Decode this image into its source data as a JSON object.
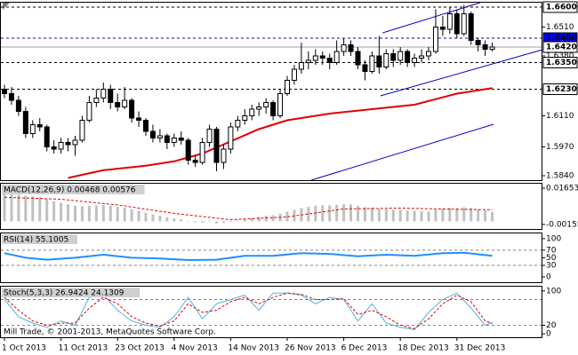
{
  "footer": "Mill Trade, © 2001-2013, MetaQuotes Software Corp.",
  "chart_data": [
    {
      "type": "candlestick",
      "categories": [
        "1 Oct 2013",
        null,
        null,
        null,
        null,
        null,
        null,
        null,
        "11 Oct 2013",
        null,
        null,
        null,
        null,
        null,
        null,
        null,
        "23 Oct 2013",
        null,
        null,
        null,
        null,
        null,
        null,
        null,
        "4 Nov 2013",
        null,
        null,
        null,
        null,
        null,
        null,
        null,
        "14 Nov 2013",
        null,
        null,
        null,
        null,
        null,
        null,
        null,
        "26 Nov 2013",
        null,
        null,
        null,
        null,
        null,
        null,
        null,
        "6 Dec 2013",
        null,
        null,
        null,
        null,
        null,
        null,
        null,
        "18 Dec 2013",
        null,
        null,
        null,
        null,
        null,
        null,
        null,
        "31 Dec 2013",
        null,
        null,
        null,
        null,
        null
      ],
      "ohlc": [
        [
          1.623,
          1.625,
          1.619,
          1.621
        ],
        [
          1.621,
          1.624,
          1.616,
          1.618
        ],
        [
          1.618,
          1.62,
          1.611,
          1.613
        ],
        [
          1.613,
          1.615,
          1.601,
          1.603
        ],
        [
          1.603,
          1.609,
          1.601,
          1.607
        ],
        [
          1.607,
          1.61,
          1.604,
          1.606
        ],
        [
          1.606,
          1.607,
          1.595,
          1.597
        ],
        [
          1.597,
          1.6,
          1.594,
          1.596
        ],
        [
          1.596,
          1.601,
          1.594,
          1.599
        ],
        [
          1.599,
          1.601,
          1.595,
          1.598
        ],
        [
          1.598,
          1.602,
          1.593,
          1.6
        ],
        [
          1.6,
          1.611,
          1.599,
          1.609
        ],
        [
          1.609,
          1.62,
          1.608,
          1.617
        ],
        [
          1.617,
          1.623,
          1.615,
          1.619
        ],
        [
          1.619,
          1.626,
          1.617,
          1.623
        ],
        [
          1.623,
          1.625,
          1.614,
          1.617
        ],
        [
          1.617,
          1.621,
          1.613,
          1.615
        ],
        [
          1.615,
          1.624,
          1.614,
          1.618
        ],
        [
          1.618,
          1.619,
          1.608,
          1.61
        ],
        [
          1.61,
          1.613,
          1.606,
          1.609
        ],
        [
          1.609,
          1.61,
          1.602,
          1.604
        ],
        [
          1.604,
          1.607,
          1.599,
          1.601
        ],
        [
          1.601,
          1.605,
          1.599,
          1.602
        ],
        [
          1.602,
          1.603,
          1.596,
          1.599
        ],
        [
          1.599,
          1.603,
          1.597,
          1.601
        ],
        [
          1.601,
          1.604,
          1.598,
          1.6
        ],
        [
          1.6,
          1.601,
          1.589,
          1.591
        ],
        [
          1.591,
          1.593,
          1.588,
          1.59
        ],
        [
          1.59,
          1.601,
          1.589,
          1.599
        ],
        [
          1.599,
          1.607,
          1.597,
          1.605
        ],
        [
          1.605,
          1.606,
          1.586,
          1.59
        ],
        [
          1.59,
          1.598,
          1.587,
          1.596
        ],
        [
          1.596,
          1.608,
          1.594,
          1.606
        ],
        [
          1.606,
          1.611,
          1.604,
          1.609
        ],
        [
          1.609,
          1.614,
          1.607,
          1.611
        ],
        [
          1.611,
          1.616,
          1.609,
          1.614
        ],
        [
          1.614,
          1.617,
          1.611,
          1.615
        ],
        [
          1.615,
          1.619,
          1.612,
          1.617
        ],
        [
          1.617,
          1.618,
          1.609,
          1.611
        ],
        [
          1.611,
          1.623,
          1.61,
          1.621
        ],
        [
          1.621,
          1.629,
          1.62,
          1.627
        ],
        [
          1.627,
          1.634,
          1.625,
          1.632
        ],
        [
          1.632,
          1.644,
          1.63,
          1.635
        ],
        [
          1.635,
          1.64,
          1.632,
          1.636
        ],
        [
          1.636,
          1.641,
          1.634,
          1.638
        ],
        [
          1.638,
          1.64,
          1.634,
          1.637
        ],
        [
          1.637,
          1.639,
          1.632,
          1.635
        ],
        [
          1.635,
          1.645,
          1.634,
          1.64
        ],
        [
          1.64,
          1.646,
          1.638,
          1.643
        ],
        [
          1.643,
          1.645,
          1.638,
          1.64
        ],
        [
          1.64,
          1.642,
          1.632,
          1.634
        ],
        [
          1.634,
          1.636,
          1.627,
          1.631
        ],
        [
          1.631,
          1.64,
          1.63,
          1.638
        ],
        [
          1.638,
          1.647,
          1.63,
          1.633
        ],
        [
          1.633,
          1.641,
          1.632,
          1.639
        ],
        [
          1.639,
          1.641,
          1.633,
          1.636
        ],
        [
          1.636,
          1.642,
          1.634,
          1.64
        ],
        [
          1.64,
          1.641,
          1.633,
          1.635
        ],
        [
          1.635,
          1.639,
          1.633,
          1.637
        ],
        [
          1.637,
          1.641,
          1.635,
          1.638
        ],
        [
          1.638,
          1.642,
          1.636,
          1.64
        ],
        [
          1.64,
          1.659,
          1.639,
          1.651
        ],
        [
          1.651,
          1.656,
          1.647,
          1.65
        ],
        [
          1.65,
          1.66,
          1.648,
          1.657
        ],
        [
          1.657,
          1.659,
          1.646,
          1.648
        ],
        [
          1.648,
          1.661,
          1.647,
          1.657
        ],
        [
          1.657,
          1.658,
          1.643,
          1.645
        ],
        [
          1.645,
          1.646,
          1.64,
          1.643
        ],
        [
          1.643,
          1.645,
          1.638,
          1.641
        ],
        [
          1.641,
          1.644,
          1.64,
          1.642
        ]
      ],
      "ylim": [
        1.582,
        1.6624
      ],
      "yticks": [
        {
          "value": 1.651,
          "label": "1.6510"
        },
        {
          "value": 1.638,
          "label": "1.6380"
        },
        {
          "value": 1.611,
          "label": "1.6110"
        },
        {
          "value": 1.597,
          "label": "1.5970"
        },
        {
          "value": 1.584,
          "label": "1.5840"
        }
      ],
      "levels": [
        {
          "value": 1.66,
          "label": "1.6600",
          "color": "#000000",
          "dash": true,
          "label_fill": "#ffffff",
          "label_color": "#000000"
        },
        {
          "value": 1.646,
          "label": "1.6460",
          "color": "#0000cc",
          "dash": true,
          "label_fill": "#0000ff",
          "label_color": "#ffffff"
        },
        {
          "value": 1.642,
          "label": "1.6420",
          "color": "#a0a0a0",
          "dash": false,
          "label_fill": "#ffffff",
          "label_color": "#000000"
        },
        {
          "value": 1.635,
          "label": "1.6350",
          "color": "#000000",
          "dash": true,
          "label_fill": "#ffffff",
          "label_color": "#000000"
        },
        {
          "value": 1.623,
          "label": "1.6230",
          "color": "#000000",
          "dash": true,
          "label_fill": "#ffffff",
          "label_color": "#000000"
        }
      ],
      "lines": [
        {
          "color": "#e00000",
          "width": 2,
          "x": [
            9,
            14,
            20,
            24,
            28,
            32,
            36,
            40,
            46,
            52,
            58,
            64,
            69
          ],
          "values": [
            1.583,
            1.5865,
            1.5885,
            1.5905,
            1.594,
            1.5995,
            1.605,
            1.609,
            1.612,
            1.614,
            1.616,
            1.621,
            1.6235
          ]
        }
      ],
      "trendlines": [
        {
          "color": "#0000cc",
          "x": [
            53.5,
            67.3
          ],
          "values": [
            1.6484,
            1.662
          ]
        },
        {
          "color": "#0000cc",
          "x": [
            53.2,
            76.1
          ],
          "values": [
            1.62,
            1.6408
          ]
        },
        {
          "color": "#0000cc",
          "x": [
            43.4,
            69.2
          ],
          "values": [
            1.582,
            1.6072
          ]
        }
      ]
    },
    {
      "type": "macd",
      "label": "MACD(12,26,9) 0.00468 0.00576",
      "values": [
        0.0135,
        0.0136,
        0.0133,
        0.0128,
        0.0125,
        0.012,
        0.011,
        0.01,
        0.0092,
        0.0085,
        0.0078,
        0.0075,
        0.0078,
        0.008,
        0.0082,
        0.0078,
        0.0072,
        0.0068,
        0.006,
        0.0052,
        0.0043,
        0.0035,
        0.0028,
        0.002,
        0.0015,
        0.001,
        0.0002,
        -0.0005,
        -0.0006,
        -0.0002,
        -0.001,
        -0.0008,
        -0.0002,
        0.0004,
        0.001,
        0.0016,
        0.0022,
        0.0028,
        0.003,
        0.0038,
        0.0048,
        0.0058,
        0.0066,
        0.0072,
        0.0078,
        0.008,
        0.008,
        0.0082,
        0.0085,
        0.0084,
        0.0078,
        0.007,
        0.0068,
        0.0062,
        0.006,
        0.0058,
        0.0058,
        0.0054,
        0.0052,
        0.005,
        0.005,
        0.0058,
        0.0062,
        0.0068,
        0.0066,
        0.007,
        0.0066,
        0.006,
        0.0055,
        0.0047
      ],
      "color": "#c0c0c0",
      "lines": [
        {
          "color": "#e00000",
          "width": 1,
          "dash": true,
          "x": [
            0,
            8,
            16,
            24,
            32,
            40,
            48,
            56,
            64,
            69
          ],
          "values": [
            0.012,
            0.011,
            0.0082,
            0.004,
            0.0008,
            0.0022,
            0.0062,
            0.0066,
            0.006,
            0.0058
          ]
        }
      ],
      "ylim": [
        -0.0038,
        0.0192
      ],
      "yticks": [
        0.01653,
        -0.00155
      ]
    },
    {
      "type": "line",
      "label": "RSI(14) 55.1005",
      "lines": [
        {
          "color": "#1e90ff",
          "width": 2,
          "x": [
            0,
            3,
            6,
            10,
            14,
            18,
            22,
            26,
            30,
            34,
            38,
            42,
            46,
            50,
            54,
            58,
            62,
            65,
            69
          ],
          "values": [
            62,
            50,
            45,
            50,
            58,
            50,
            48,
            44,
            45,
            55,
            55,
            62,
            60,
            54,
            58,
            55,
            62,
            63,
            55
          ]
        }
      ],
      "levels": [
        70,
        30
      ],
      "ylim": [
        -14,
        116
      ],
      "yticks": [
        0,
        30,
        50,
        70,
        100
      ]
    },
    {
      "type": "line",
      "label": "Stoch(5,3,3) 26.9424 24.1309",
      "lines": [
        {
          "color": "#4fb3e0",
          "width": 1,
          "x": [
            0,
            2,
            4,
            6,
            8,
            10,
            12,
            14,
            16,
            18,
            20,
            22,
            24,
            26,
            28,
            30,
            32,
            34,
            36,
            38,
            40,
            42,
            44,
            46,
            48,
            50,
            52,
            54,
            56,
            58,
            60,
            62,
            64,
            66,
            68,
            69
          ],
          "values": [
            80,
            40,
            25,
            15,
            30,
            20,
            85,
            90,
            55,
            30,
            20,
            15,
            40,
            85,
            35,
            70,
            80,
            90,
            55,
            95,
            95,
            90,
            70,
            85,
            80,
            30,
            70,
            25,
            15,
            10,
            50,
            80,
            95,
            60,
            20,
            27
          ]
        },
        {
          "color": "#e00000",
          "width": 1,
          "dash": true,
          "x": [
            0,
            2,
            4,
            6,
            8,
            10,
            12,
            14,
            16,
            18,
            20,
            22,
            24,
            26,
            28,
            30,
            32,
            34,
            36,
            38,
            40,
            42,
            44,
            46,
            48,
            50,
            52,
            54,
            56,
            58,
            60,
            62,
            64,
            66,
            68,
            69
          ],
          "values": [
            85,
            55,
            30,
            20,
            25,
            25,
            60,
            85,
            70,
            40,
            25,
            18,
            30,
            70,
            50,
            55,
            75,
            85,
            70,
            85,
            95,
            92,
            80,
            80,
            82,
            45,
            55,
            40,
            20,
            12,
            35,
            70,
            90,
            75,
            30,
            24
          ]
        }
      ],
      "levels": [
        80,
        20
      ],
      "ylim": [
        -8,
        112
      ],
      "yticks": [
        0,
        20,
        100
      ]
    }
  ]
}
